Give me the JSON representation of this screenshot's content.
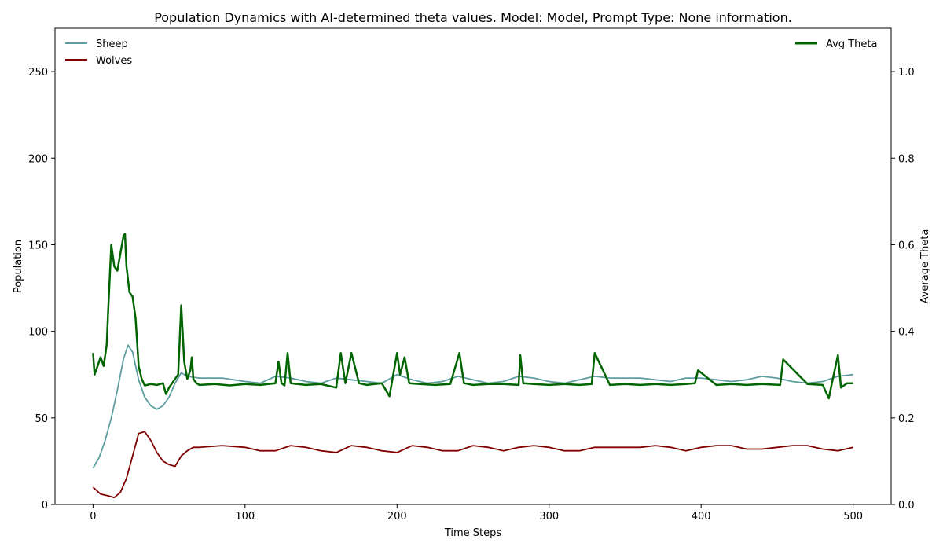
{
  "chart_data": {
    "type": "line",
    "title": "Population Dynamics with AI-determined theta values. Model: Model, Prompt Type: None information.",
    "xlabel": "Time Steps",
    "ylabel": "Population",
    "y2label": "Average Theta",
    "xlim": [
      -25,
      525
    ],
    "ylim": [
      0,
      275
    ],
    "y2lim": [
      0,
      1.1
    ],
    "xticks": [
      0,
      100,
      200,
      300,
      400,
      500
    ],
    "yticks": [
      0,
      50,
      100,
      150,
      200,
      250
    ],
    "y2ticks": [
      0.0,
      0.2,
      0.4,
      0.6,
      0.8,
      1.0
    ],
    "xtick_labels": [
      "0",
      "100",
      "200",
      "300",
      "400",
      "500"
    ],
    "ytick_labels": [
      "0",
      "50",
      "100",
      "150",
      "200",
      "250"
    ],
    "y2tick_labels": [
      "0.0",
      "0.2",
      "0.4",
      "0.6",
      "0.8",
      "1.0"
    ],
    "grid": false,
    "legend_left": [
      "Sheep",
      "Wolves"
    ],
    "legend_right": [
      "Avg Theta"
    ],
    "legend_left_placement": "upper-left",
    "legend_right_placement": "upper-right",
    "series": [
      {
        "name": "Sheep",
        "axis": "left",
        "color": "#5f9ea0",
        "x": [
          0,
          4,
          8,
          12,
          16,
          20,
          23,
          26,
          30,
          34,
          38,
          42,
          46,
          50,
          54,
          58,
          62,
          70,
          85,
          100,
          110,
          120,
          130,
          140,
          150,
          160,
          170,
          180,
          190,
          200,
          210,
          220,
          230,
          240,
          250,
          260,
          270,
          280,
          290,
          300,
          310,
          320,
          330,
          340,
          350,
          360,
          370,
          380,
          390,
          400,
          410,
          420,
          430,
          440,
          450,
          460,
          470,
          480,
          490,
          500
        ],
        "y": [
          21,
          27,
          37,
          50,
          66,
          84,
          92,
          88,
          72,
          62,
          57,
          55,
          57,
          62,
          70,
          76,
          74,
          73,
          73,
          71,
          70,
          74,
          73,
          71,
          70,
          73,
          72,
          71,
          70,
          75,
          72,
          70,
          71,
          74,
          72,
          70,
          71,
          74,
          73,
          71,
          70,
          72,
          74,
          73,
          73,
          73,
          72,
          71,
          73,
          73,
          72,
          71,
          72,
          74,
          73,
          71,
          70,
          71,
          74,
          75
        ]
      },
      {
        "name": "Wolves",
        "axis": "left",
        "color": "#800000",
        "x": [
          0,
          5,
          10,
          14,
          18,
          22,
          26,
          30,
          34,
          38,
          42,
          46,
          50,
          54,
          58,
          62,
          66,
          70,
          85,
          100,
          110,
          120,
          130,
          140,
          150,
          160,
          170,
          180,
          190,
          200,
          210,
          220,
          230,
          240,
          250,
          260,
          270,
          280,
          290,
          300,
          310,
          320,
          330,
          340,
          350,
          360,
          370,
          380,
          390,
          400,
          410,
          420,
          430,
          440,
          450,
          460,
          470,
          480,
          490,
          500
        ],
        "y": [
          10,
          6,
          5,
          4,
          7,
          15,
          28,
          41,
          42,
          37,
          30,
          25,
          23,
          22,
          28,
          31,
          33,
          33,
          34,
          33,
          31,
          31,
          34,
          33,
          31,
          30,
          34,
          33,
          31,
          30,
          34,
          33,
          31,
          31,
          34,
          33,
          31,
          33,
          34,
          33,
          31,
          31,
          33,
          33,
          33,
          33,
          34,
          33,
          31,
          33,
          34,
          34,
          32,
          32,
          33,
          34,
          34,
          32,
          31,
          33
        ]
      },
      {
        "name": "Avg Theta",
        "axis": "right",
        "color": "#006400",
        "x": [
          0,
          1,
          3,
          5,
          7,
          9,
          10,
          12,
          14,
          16,
          18,
          20,
          21,
          22,
          24,
          26,
          28,
          30,
          32,
          34,
          38,
          42,
          46,
          48,
          50,
          52,
          54,
          56,
          58,
          60,
          62,
          64,
          65,
          66,
          68,
          70,
          80,
          90,
          100,
          110,
          120,
          122,
          124,
          126,
          128,
          130,
          140,
          150,
          160,
          163,
          166,
          170,
          175,
          180,
          190,
          195,
          200,
          202,
          205,
          208,
          215,
          225,
          235,
          241,
          244,
          250,
          260,
          270,
          280,
          281,
          283,
          290,
          300,
          310,
          320,
          328,
          330,
          340,
          350,
          360,
          370,
          380,
          390,
          396,
          398,
          410,
          420,
          430,
          440,
          452,
          454,
          470,
          480,
          484,
          486,
          490,
          492,
          496,
          500
        ],
        "y": [
          0.35,
          0.3,
          0.32,
          0.34,
          0.32,
          0.37,
          0.45,
          0.6,
          0.55,
          0.54,
          0.58,
          0.62,
          0.625,
          0.55,
          0.49,
          0.48,
          0.43,
          0.32,
          0.29,
          0.275,
          0.278,
          0.276,
          0.28,
          0.255,
          0.27,
          0.28,
          0.29,
          0.3,
          0.46,
          0.33,
          0.29,
          0.31,
          0.34,
          0.29,
          0.28,
          0.276,
          0.278,
          0.275,
          0.278,
          0.276,
          0.28,
          0.33,
          0.28,
          0.275,
          0.35,
          0.28,
          0.276,
          0.278,
          0.27,
          0.35,
          0.28,
          0.35,
          0.28,
          0.276,
          0.28,
          0.25,
          0.35,
          0.3,
          0.34,
          0.28,
          0.278,
          0.276,
          0.278,
          0.35,
          0.28,
          0.276,
          0.278,
          0.278,
          0.276,
          0.345,
          0.28,
          0.278,
          0.276,
          0.278,
          0.276,
          0.278,
          0.35,
          0.276,
          0.278,
          0.276,
          0.278,
          0.276,
          0.278,
          0.28,
          0.31,
          0.276,
          0.278,
          0.276,
          0.278,
          0.276,
          0.335,
          0.278,
          0.276,
          0.245,
          0.28,
          0.345,
          0.27,
          0.28,
          0.28
        ]
      }
    ]
  },
  "colors": {
    "sheep": "#5f9ea0",
    "wolves": "#800000",
    "theta": "#006400"
  }
}
